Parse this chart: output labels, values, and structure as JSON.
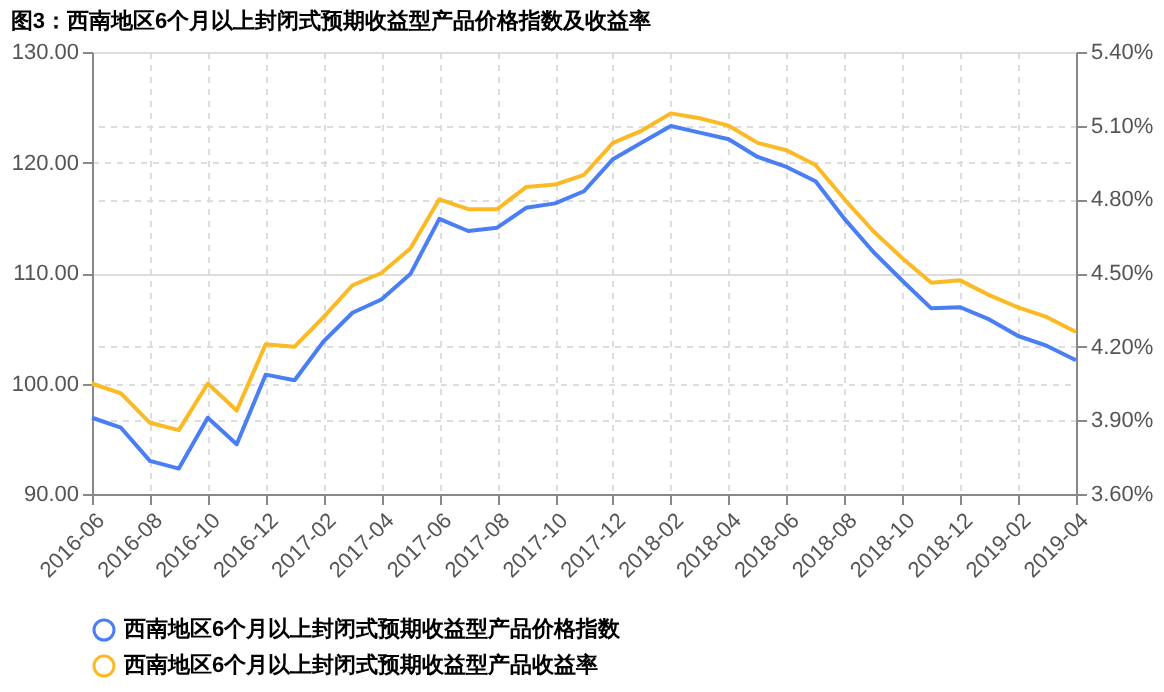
{
  "chart_data": {
    "type": "line",
    "title": "图3：西南地区6个月以上封闭式预期收益型产品价格指数及收益率",
    "categories": [
      "2016-06",
      null,
      "2016-08",
      null,
      "2016-10",
      null,
      "2016-12",
      null,
      "2017-02",
      null,
      "2017-04",
      null,
      "2017-06",
      null,
      "2017-08",
      null,
      "2017-10",
      null,
      "2017-12",
      null,
      "2018-02",
      null,
      "2018-04",
      null,
      "2018-06",
      null,
      "2018-08",
      null,
      "2018-10",
      null,
      "2018-12",
      null,
      "2019-02",
      null,
      "2019-04"
    ],
    "series": [
      {
        "name": "西南地区6个月以上封闭式预期收益型产品价格指数",
        "color": "#4a7ef5",
        "values": [
          96.9,
          96.0,
          93.0,
          92.3,
          96.9,
          94.5,
          100.8,
          100.3,
          103.8,
          106.4,
          107.6,
          109.9,
          114.9,
          113.8,
          114.1,
          115.9,
          116.3,
          117.4,
          120.3,
          121.8,
          123.3,
          122.7,
          122.1,
          120.5,
          119.6,
          118.3,
          114.9,
          111.9,
          109.3,
          106.8,
          106.9,
          105.8,
          104.3,
          103.4,
          102.1
        ]
      },
      {
        "name": "西南地区6个月以上封闭式预期收益型产品收益率",
        "color": "#fbb924",
        "axis": "y2",
        "values": [
          4.05,
          4.01,
          3.89,
          3.86,
          4.05,
          3.94,
          4.21,
          4.2,
          4.32,
          4.45,
          4.5,
          4.6,
          4.8,
          4.76,
          4.76,
          4.85,
          4.86,
          4.9,
          5.03,
          5.08,
          5.15,
          5.13,
          5.1,
          5.03,
          5.0,
          4.94,
          4.8,
          4.67,
          4.56,
          4.46,
          4.47,
          4.41,
          4.36,
          4.32,
          4.26
        ]
      }
    ],
    "ylim": [
      90,
      130
    ],
    "yticks": [
      {
        "value": 90,
        "label": "90.00"
      },
      {
        "value": 100,
        "label": "100.00"
      },
      {
        "value": 110,
        "label": "110.00"
      },
      {
        "value": 120,
        "label": "120.00"
      },
      {
        "value": 130,
        "label": "130.00"
      }
    ],
    "y2lim": [
      3.6,
      5.4
    ],
    "y2ticks": [
      {
        "value": 3.6,
        "label": "3.60%"
      },
      {
        "value": 3.9,
        "label": "3.90%"
      },
      {
        "value": 4.2,
        "label": "4.20%"
      },
      {
        "value": 4.5,
        "label": "4.50%"
      },
      {
        "value": 4.8,
        "label": "4.80%"
      },
      {
        "value": 5.1,
        "label": "5.10%"
      },
      {
        "value": 5.4,
        "label": "5.40%"
      }
    ],
    "grid": true,
    "legend": "bottom",
    "marker": "none",
    "line_style": "solid"
  }
}
